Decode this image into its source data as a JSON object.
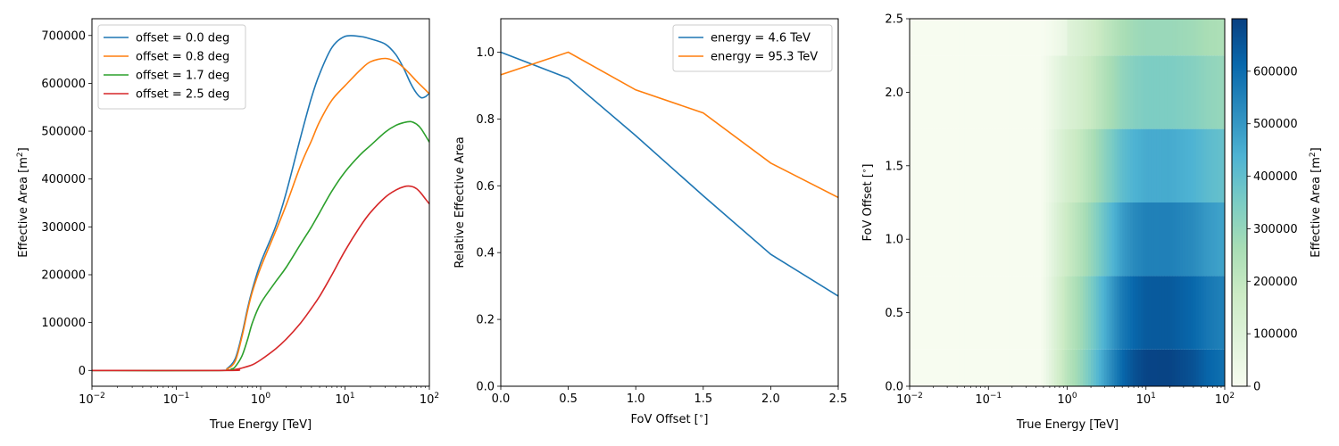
{
  "chart_data": [
    {
      "type": "line",
      "xlabel": "True Energy [TeV]",
      "ylabel": "Effective Area [m$^2$]",
      "xscale": "log",
      "xlim": [
        0.01,
        100
      ],
      "ylim": [
        -33000,
        735000
      ],
      "xticks": [
        {
          "value": 0.01,
          "base": "10",
          "exp": "−2"
        },
        {
          "value": 0.1,
          "base": "10",
          "exp": "−1"
        },
        {
          "value": 1,
          "base": "10",
          "exp": "0"
        },
        {
          "value": 10,
          "base": "10",
          "exp": "1"
        },
        {
          "value": 100,
          "base": "10",
          "exp": "2"
        }
      ],
      "yticks": [
        {
          "value": 0,
          "label": "0"
        },
        {
          "value": 100000,
          "label": "100000"
        },
        {
          "value": 200000,
          "label": "200000"
        },
        {
          "value": 300000,
          "label": "300000"
        },
        {
          "value": 400000,
          "label": "400000"
        },
        {
          "value": 500000,
          "label": "500000"
        },
        {
          "value": 600000,
          "label": "600000"
        },
        {
          "value": 700000,
          "label": "700000"
        }
      ],
      "legend_position": "top-left",
      "grid": false,
      "series": [
        {
          "name": "offset = 0.0 deg",
          "color": "#1f77b4",
          "x": [
            0.01,
            0.32,
            0.4,
            0.5,
            0.6,
            0.7,
            0.8,
            1.0,
            1.5,
            2.0,
            3.0,
            4.0,
            5.0,
            7.0,
            10.0,
            15.0,
            20.0,
            30.0,
            40.0,
            50.0,
            60.0,
            70.0,
            80.0,
            90.0,
            100.0
          ],
          "y": [
            0,
            0,
            4000,
            25000,
            75000,
            130000,
            170000,
            225000,
            300000,
            370000,
            490000,
            570000,
            620000,
            675000,
            698000,
            698000,
            693000,
            682000,
            660000,
            630000,
            600000,
            580000,
            570000,
            572000,
            580000
          ]
        },
        {
          "name": "offset = 0.8 deg",
          "color": "#ff7f0e",
          "x": [
            0.01,
            0.32,
            0.4,
            0.5,
            0.6,
            0.7,
            0.8,
            1.0,
            1.5,
            2.0,
            3.0,
            4.0,
            5.0,
            7.0,
            10.0,
            15.0,
            20.0,
            30.0,
            40.0,
            50.0,
            60.0,
            70.0,
            80.0,
            100.0
          ],
          "y": [
            0,
            0,
            3000,
            20000,
            70000,
            125000,
            165000,
            215000,
            290000,
            345000,
            430000,
            480000,
            520000,
            565000,
            595000,
            627000,
            645000,
            652000,
            645000,
            632000,
            618000,
            605000,
            595000,
            578000
          ]
        },
        {
          "name": "offset = 1.7 deg",
          "color": "#2ca02c",
          "x": [
            0.01,
            0.35,
            0.45,
            0.5,
            0.6,
            0.7,
            0.8,
            1.0,
            1.5,
            2.0,
            3.0,
            4.0,
            5.0,
            7.0,
            10.0,
            15.0,
            20.0,
            30.0,
            40.0,
            50.0,
            60.0,
            70.0,
            80.0,
            100.0
          ],
          "y": [
            0,
            0,
            3000,
            8000,
            30000,
            65000,
            100000,
            140000,
            185000,
            215000,
            265000,
            300000,
            330000,
            375000,
            415000,
            450000,
            470000,
            498000,
            512000,
            518000,
            520000,
            515000,
            505000,
            477000
          ]
        },
        {
          "name": "offset = 2.5 deg",
          "color": "#d62728",
          "x": [
            0.01,
            0.4,
            0.5,
            0.6,
            0.8,
            1.0,
            1.5,
            2.0,
            3.0,
            4.0,
            5.0,
            7.0,
            10.0,
            15.0,
            20.0,
            30.0,
            40.0,
            50.0,
            60.0,
            70.0,
            80.0,
            90.0,
            100.0
          ],
          "y": [
            0,
            0,
            2000,
            5000,
            12000,
            22000,
            45000,
            65000,
            100000,
            130000,
            155000,
            200000,
            250000,
            300000,
            330000,
            362000,
            377000,
            384000,
            385000,
            380000,
            370000,
            358000,
            348000
          ]
        }
      ]
    },
    {
      "type": "line",
      "xlabel": "FoV Offset [$^{\\circ}$]",
      "ylabel": "Relative Effective Area",
      "xlim": [
        0,
        2.5
      ],
      "ylim": [
        0,
        1.1
      ],
      "xticks": [
        {
          "value": 0,
          "label": "0.0"
        },
        {
          "value": 0.5,
          "label": "0.5"
        },
        {
          "value": 1.0,
          "label": "1.0"
        },
        {
          "value": 1.5,
          "label": "1.5"
        },
        {
          "value": 2.0,
          "label": "2.0"
        },
        {
          "value": 2.5,
          "label": "2.5"
        }
      ],
      "yticks": [
        {
          "value": 0,
          "label": "0.0"
        },
        {
          "value": 0.2,
          "label": "0.2"
        },
        {
          "value": 0.4,
          "label": "0.4"
        },
        {
          "value": 0.6,
          "label": "0.6"
        },
        {
          "value": 0.8,
          "label": "0.8"
        },
        {
          "value": 1.0,
          "label": "1.0"
        }
      ],
      "legend_position": "top-right",
      "grid": false,
      "series": [
        {
          "name": "energy = 4.6 TeV",
          "color": "#1f77b4",
          "x": [
            0,
            0.5,
            1.0,
            1.5,
            2.0,
            2.5
          ],
          "y": [
            1.0,
            0.922,
            0.75,
            0.57,
            0.395,
            0.27
          ]
        },
        {
          "name": "energy = 95.3 TeV",
          "color": "#ff7f0e",
          "x": [
            0,
            0.5,
            1.0,
            1.5,
            2.0,
            2.5
          ],
          "y": [
            0.932,
            1.0,
            0.887,
            0.818,
            0.668,
            0.565
          ]
        }
      ]
    },
    {
      "type": "heatmap",
      "xlabel": "True Energy [TeV]",
      "ylabel": "FoV Offset [$^{\\circ}$]",
      "xscale": "log",
      "xlim": [
        0.01,
        100
      ],
      "ylim": [
        0,
        2.5
      ],
      "colormap": "GnBu",
      "xticks": [
        {
          "value": 0.01,
          "base": "10",
          "exp": "−2"
        },
        {
          "value": 0.1,
          "base": "10",
          "exp": "−1"
        },
        {
          "value": 1,
          "base": "10",
          "exp": "0"
        },
        {
          "value": 10,
          "base": "10",
          "exp": "1"
        },
        {
          "value": 100,
          "base": "10",
          "exp": "2"
        }
      ],
      "yticks": [
        {
          "value": 0,
          "label": "0.0"
        },
        {
          "value": 0.5,
          "label": "0.5"
        },
        {
          "value": 1.0,
          "label": "1.0"
        },
        {
          "value": 1.5,
          "label": "1.5"
        },
        {
          "value": 2.0,
          "label": "2.0"
        },
        {
          "value": 2.5,
          "label": "2.5"
        }
      ],
      "colorbar": {
        "label": "Effective Area [m$^2$]",
        "range": [
          0,
          700000
        ],
        "ticks": [
          {
            "value": 0,
            "label": "0"
          },
          {
            "value": 100000,
            "label": "100000"
          },
          {
            "value": 200000,
            "label": "200000"
          },
          {
            "value": 300000,
            "label": "300000"
          },
          {
            "value": 400000,
            "label": "400000"
          },
          {
            "value": 500000,
            "label": "500000"
          },
          {
            "value": 600000,
            "label": "600000"
          }
        ]
      },
      "offset_bins": [
        {
          "lo": 0.0,
          "hi": 0.25,
          "scale": 1.0,
          "fade": 0.0
        },
        {
          "lo": 0.25,
          "hi": 0.75,
          "scale": 0.93,
          "fade": 0.0
        },
        {
          "lo": 0.75,
          "hi": 1.25,
          "scale": 0.8,
          "fade": 0.0
        },
        {
          "lo": 1.25,
          "hi": 1.75,
          "scale": 0.66,
          "fade": 0.0
        },
        {
          "lo": 1.75,
          "hi": 2.25,
          "scale": 0.5,
          "fade": 0.0
        },
        {
          "lo": 2.25,
          "hi": 2.5,
          "scale": 0.42,
          "fade": 1.0
        }
      ],
      "energy_profile": {
        "x": [
          0.01,
          0.45,
          0.5,
          0.6,
          0.8,
          1.0,
          1.5,
          2.0,
          3.0,
          5.0,
          7.0,
          10.0,
          20.0,
          40.0,
          60.0,
          100.0
        ],
        "y": [
          0,
          0,
          18000,
          70000,
          160000,
          220000,
          300000,
          370000,
          480000,
          610000,
          660000,
          690000,
          692000,
          660000,
          620000,
          590000
        ]
      }
    }
  ]
}
